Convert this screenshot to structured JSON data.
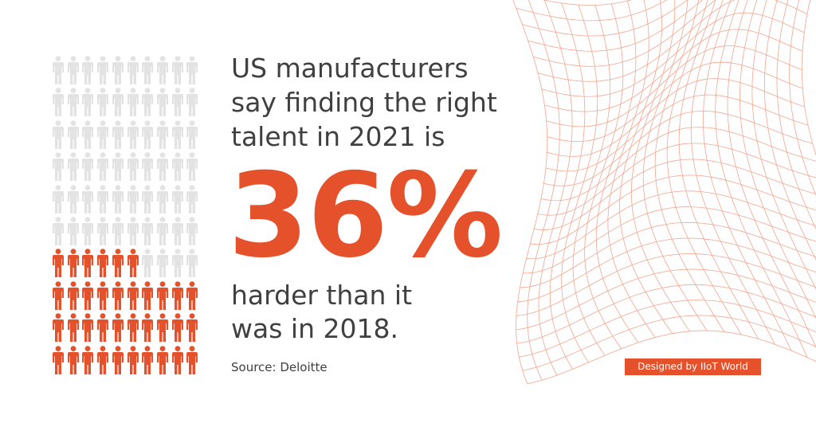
{
  "headline": [
    "US manufacturers",
    "say finding the right",
    "talent in 2021 is"
  ],
  "stat": "36%",
  "subline": [
    "harder than it",
    "was in 2018."
  ],
  "source": "Source: Deloitte",
  "credit": "Designed by IIoT World",
  "pictogram": {
    "total": 100,
    "highlighted": 36,
    "columns": 10,
    "rows": 10
  },
  "colors": {
    "accent": "#e5512a",
    "muted": "#e3e3e3",
    "text": "#404040",
    "mesh": "#f2a58e"
  }
}
